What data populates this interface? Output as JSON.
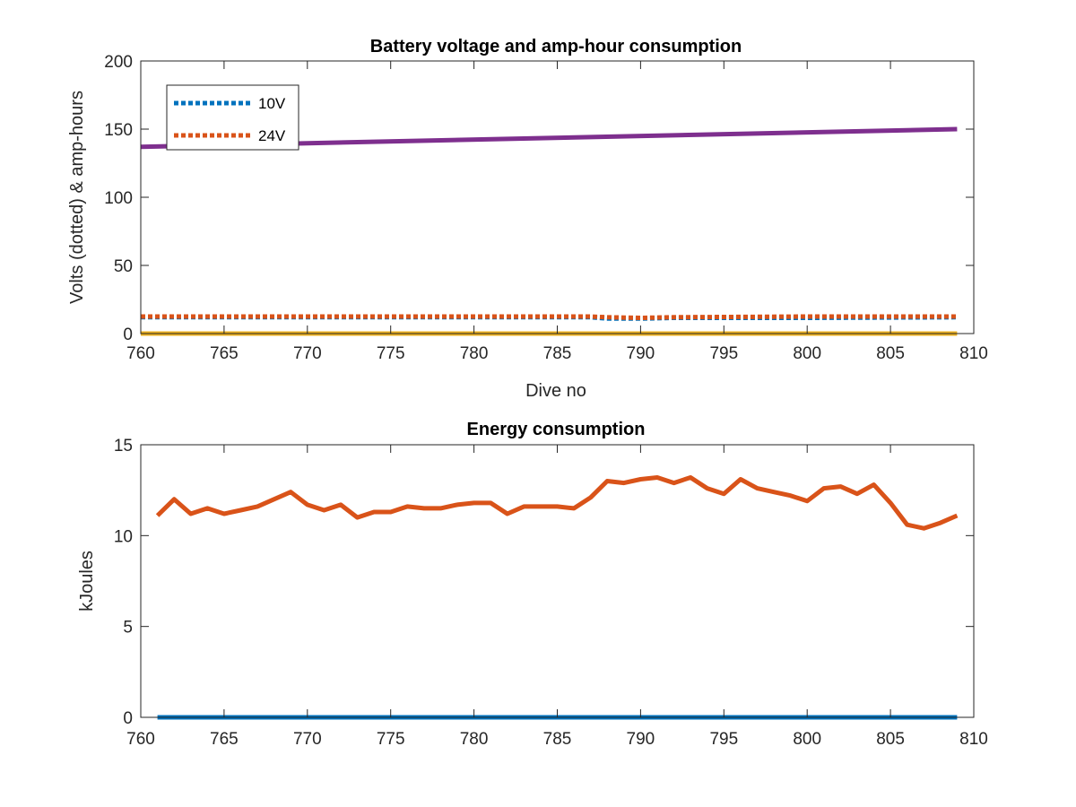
{
  "chart_data": [
    {
      "type": "line",
      "title": "Battery voltage and amp-hour consumption",
      "xlabel": "Dive no",
      "ylabel": "Volts (dotted) & amp-hours",
      "xlim": [
        760,
        810
      ],
      "ylim": [
        0,
        200
      ],
      "xticks": [
        760,
        765,
        770,
        775,
        780,
        785,
        790,
        795,
        800,
        805,
        810
      ],
      "yticks": [
        0,
        50,
        100,
        150,
        200
      ],
      "grid": false,
      "legend_position": "top-left",
      "series": [
        {
          "name": "10V",
          "style": "dotted",
          "color": "#0072BD",
          "x": [
            760,
            787,
            788,
            790,
            792,
            800,
            809
          ],
          "y": [
            12,
            12,
            11,
            11,
            11.5,
            11.5,
            12
          ]
        },
        {
          "name": "24V",
          "style": "dotted",
          "color": "#D95319",
          "x": [
            760,
            787,
            788,
            790,
            792,
            800,
            809
          ],
          "y": [
            12.5,
            12.5,
            12,
            11.5,
            12,
            12.5,
            12.5
          ]
        },
        {
          "style": "solid",
          "color": "#EDB120",
          "x": [
            760,
            809
          ],
          "y": [
            0,
            0
          ]
        },
        {
          "style": "solid",
          "color": "#7E2F8E",
          "x": [
            760,
            809
          ],
          "y": [
            137,
            150
          ]
        }
      ]
    },
    {
      "type": "line",
      "title": "Energy consumption",
      "xlabel": "",
      "ylabel": "kJoules",
      "xlim": [
        760,
        810
      ],
      "ylim": [
        0,
        15
      ],
      "xticks": [
        760,
        765,
        770,
        775,
        780,
        785,
        790,
        795,
        800,
        805,
        810
      ],
      "yticks": [
        0,
        5,
        10,
        15
      ],
      "grid": false,
      "series": [
        {
          "style": "solid",
          "color": "#0072BD",
          "x": [
            761,
            809
          ],
          "y": [
            0,
            0
          ]
        },
        {
          "style": "solid",
          "color": "#D95319",
          "x": [
            761,
            762,
            763,
            764,
            765,
            766,
            767,
            768,
            769,
            770,
            771,
            772,
            773,
            774,
            775,
            776,
            777,
            778,
            779,
            780,
            781,
            782,
            783,
            784,
            785,
            786,
            787,
            788,
            789,
            790,
            791,
            792,
            793,
            794,
            795,
            796,
            797,
            798,
            799,
            800,
            801,
            802,
            803,
            804,
            805,
            806,
            807,
            808,
            809
          ],
          "y": [
            11.1,
            12.0,
            11.2,
            11.5,
            11.2,
            11.4,
            11.6,
            12.0,
            12.4,
            11.7,
            11.4,
            11.7,
            11.0,
            11.3,
            11.3,
            11.6,
            11.5,
            11.5,
            11.7,
            11.8,
            11.8,
            11.2,
            11.6,
            11.6,
            11.6,
            11.5,
            12.1,
            13.0,
            12.9,
            13.1,
            13.2,
            12.9,
            13.2,
            12.6,
            12.3,
            13.1,
            12.6,
            12.4,
            12.2,
            11.9,
            12.6,
            12.7,
            12.3,
            12.8,
            11.8,
            10.6,
            10.4,
            10.7,
            11.1
          ]
        }
      ]
    }
  ]
}
